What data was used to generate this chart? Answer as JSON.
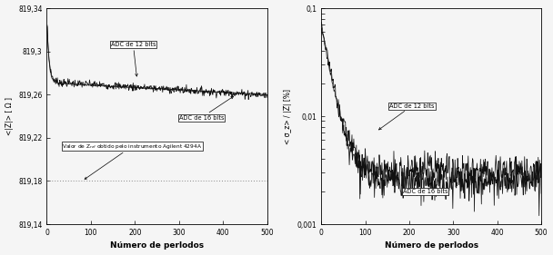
{
  "left_ylim": [
    819.14,
    819.34
  ],
  "left_yticks": [
    819.14,
    819.18,
    819.22,
    819.26,
    819.3,
    819.34
  ],
  "left_ytick_labels": [
    "819,14",
    "819,18",
    "819,22",
    "819,26",
    "819,3",
    "819,34"
  ],
  "left_ylabel": "<|Z|> [ Ω ]",
  "right_ylabel": "< σ_z> / |Z̅| [%]",
  "xlabel": "Número de perlodos",
  "xlim": [
    0,
    500
  ],
  "xticks": [
    0,
    100,
    200,
    300,
    400,
    500
  ],
  "reference_value": 819.18,
  "annotation_ref": "Valor de Z_ref obtido pelo instrumento Agilent 4294A",
  "annotation_12bit_left": "ADC de 12 bits",
  "annotation_16bit_left": "ADC de 16 bits",
  "annotation_12bit_right": "ADC de 12 bits",
  "annotation_16bit_right": "ADC de 16 bits",
  "line_color": "#111111",
  "ref_color": "#888888",
  "background": "#f5f5f5"
}
